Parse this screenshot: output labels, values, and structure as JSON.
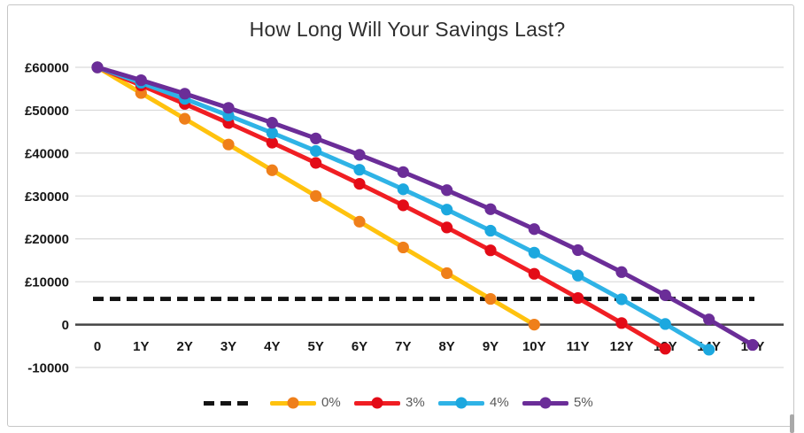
{
  "title": "How Long Will Your Savings Last?",
  "chart_data": {
    "type": "line",
    "title": "How Long Will Your Savings Last?",
    "xlabel": "",
    "ylabel": "",
    "x_tick_labels": [
      "0",
      "1Y",
      "2Y",
      "3Y",
      "4Y",
      "5Y",
      "6Y",
      "7Y",
      "8Y",
      "9Y",
      "10Y",
      "11Y",
      "12Y",
      "13Y",
      "14Y",
      "15Y"
    ],
    "y_ticks": [
      {
        "label": "£60000",
        "value": 60000
      },
      {
        "label": "£50000",
        "value": 50000
      },
      {
        "label": "£40000",
        "value": 40000
      },
      {
        "label": "£30000",
        "value": 30000
      },
      {
        "label": "£20000",
        "value": 20000
      },
      {
        "label": "£10000",
        "value": 10000
      },
      {
        "label": "0",
        "value": 0
      },
      {
        "label": "-10000",
        "value": -10000
      }
    ],
    "ylim": [
      -10000,
      60000
    ],
    "grid": true,
    "legend_position": "bottom",
    "reference_line": {
      "style": "dashed",
      "value": 6000,
      "color": "#141414",
      "label": ""
    },
    "series": [
      {
        "name": "0%",
        "line_color": "#FFC20E",
        "marker_color": "#EF7F1A",
        "values": [
          60000,
          54000,
          48000,
          42000,
          36000,
          30000,
          24000,
          18000,
          12000,
          6000,
          0
        ]
      },
      {
        "name": "3%",
        "line_color": "#F01E23",
        "marker_color": "#E30B17",
        "values": [
          60000,
          55800,
          51474,
          47018,
          42429,
          37702,
          32832,
          27817,
          22651,
          17331,
          11851,
          6206,
          373,
          -5616
        ]
      },
      {
        "name": "4%",
        "line_color": "#2FB3E6",
        "marker_color": "#1CA8DF",
        "values": [
          60000,
          56400,
          52656,
          48762,
          44713,
          40501,
          36121,
          31566,
          26828,
          21901,
          16777,
          11448,
          5906,
          142,
          -5852
        ]
      },
      {
        "name": "5%",
        "line_color": "#6B2D98",
        "marker_color": "#6B2D98",
        "values": [
          60000,
          57000,
          53850,
          50543,
          47070,
          43423,
          39594,
          35574,
          31353,
          26920,
          22266,
          17380,
          12249,
          6861,
          1204,
          -4736
        ]
      }
    ],
    "legend_entries": [
      {
        "label": ""
      },
      {
        "label": "0%"
      },
      {
        "label": "3%"
      },
      {
        "label": "4%"
      },
      {
        "label": "5%"
      }
    ]
  },
  "colors": {
    "gridline": "#d9d9d9",
    "zero_axis": "#454545",
    "frame_border": "#c6c6c6",
    "legend_text": "#595959",
    "background": "#ffffff"
  }
}
